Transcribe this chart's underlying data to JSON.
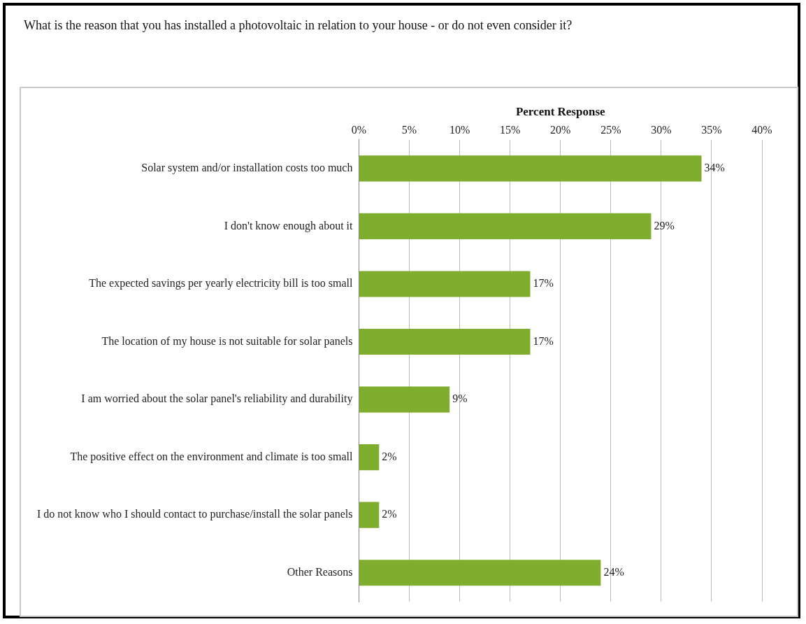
{
  "chart_data": {
    "type": "bar",
    "orientation": "horizontal",
    "title": "What is the reason that you   has installed a photovoltaic   in relation to your house - or do not even consider it?",
    "xlabel": "Percent Response",
    "categories": [
      "Solar system and/or installation costs too much",
      "I don't know enough about it",
      "The expected savings per yearly electricity bill is too small",
      "The location of my house is not suitable for solar panels",
      "I am worried about the solar panel's reliability and durability",
      "The positive effect on the environment and climate is too small",
      "I do not know who I should contact to purchase/install the solar panels",
      "Other Reasons"
    ],
    "values": [
      34,
      29,
      17,
      17,
      9,
      2,
      2,
      24
    ],
    "value_labels": [
      "34%",
      "29%",
      "17%",
      "17%",
      "9%",
      "2%",
      "2%",
      "24%"
    ],
    "color": "#7fae2f",
    "xlim": [
      0,
      40
    ],
    "xticks": [
      {
        "value": 0,
        "label": "0%"
      },
      {
        "value": 5,
        "label": "5%"
      },
      {
        "value": 10,
        "label": "10%"
      },
      {
        "value": 15,
        "label": "15%"
      },
      {
        "value": 20,
        "label": "20%"
      },
      {
        "value": 25,
        "label": "25%"
      },
      {
        "value": 30,
        "label": "30%"
      },
      {
        "value": 35,
        "label": "35%"
      },
      {
        "value": 40,
        "label": "40%"
      }
    ],
    "grid": "x",
    "legend": false
  }
}
